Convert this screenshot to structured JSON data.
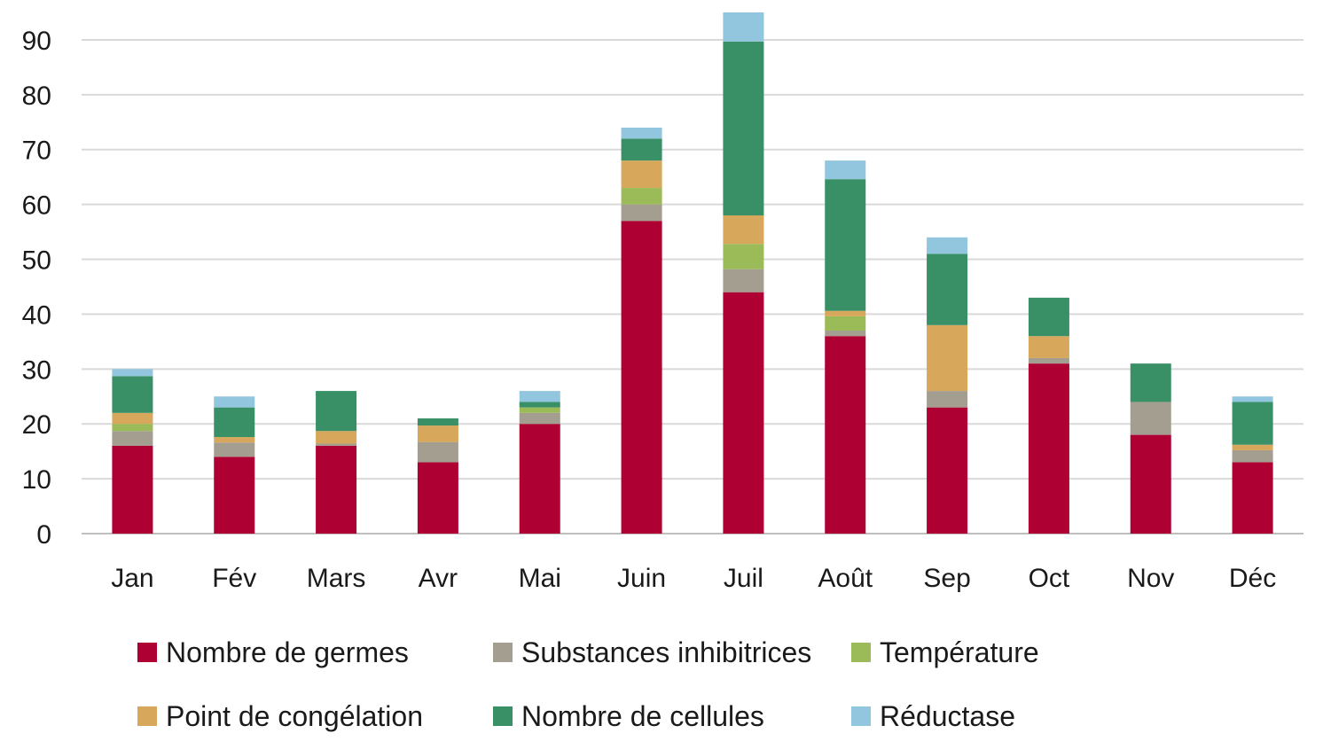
{
  "chart_data": {
    "type": "bar",
    "stacked": true,
    "title": "",
    "xlabel": "",
    "ylabel": "",
    "ylim": [
      0,
      95
    ],
    "yticks": [
      0,
      10,
      20,
      30,
      40,
      50,
      60,
      70,
      80,
      90
    ],
    "grid": true,
    "legend_position": "bottom",
    "categories": [
      "Jan",
      "Fév",
      "Mars",
      "Avr",
      "Mai",
      "Juin",
      "Juil",
      "Août",
      "Sep",
      "Oct",
      "Nov",
      "Déc"
    ],
    "series": [
      {
        "name": "Nombre de germes",
        "color": "#AE0033",
        "values": [
          16,
          14,
          16,
          13,
          20,
          57,
          44,
          36,
          23,
          31,
          18,
          13
        ]
      },
      {
        "name": "Substances inhibitrices",
        "color": "#A39E8F",
        "values": [
          2.7,
          2.6,
          0.4,
          3.7,
          2,
          3,
          4.2,
          1,
          3,
          1,
          6,
          2.2
        ]
      },
      {
        "name": "Température",
        "color": "#9BBB59",
        "values": [
          1.3,
          0,
          0,
          0,
          1,
          3,
          4.6,
          2.6,
          0,
          0,
          0,
          0
        ]
      },
      {
        "name": "Point de congélation",
        "color": "#D7A75B",
        "values": [
          2,
          1,
          2.3,
          3,
          0,
          5,
          5.2,
          1,
          12,
          4,
          0,
          1
        ]
      },
      {
        "name": "Nombre de cellules",
        "color": "#3A9066",
        "values": [
          6.7,
          5.4,
          7.3,
          1.3,
          1,
          4,
          31.7,
          24,
          13,
          7,
          7,
          7.8
        ]
      },
      {
        "name": "Réductase",
        "color": "#92C5DE",
        "values": [
          1.3,
          2,
          0,
          0,
          2,
          2,
          5.3,
          3.4,
          3,
          0,
          0,
          1
        ]
      }
    ]
  }
}
